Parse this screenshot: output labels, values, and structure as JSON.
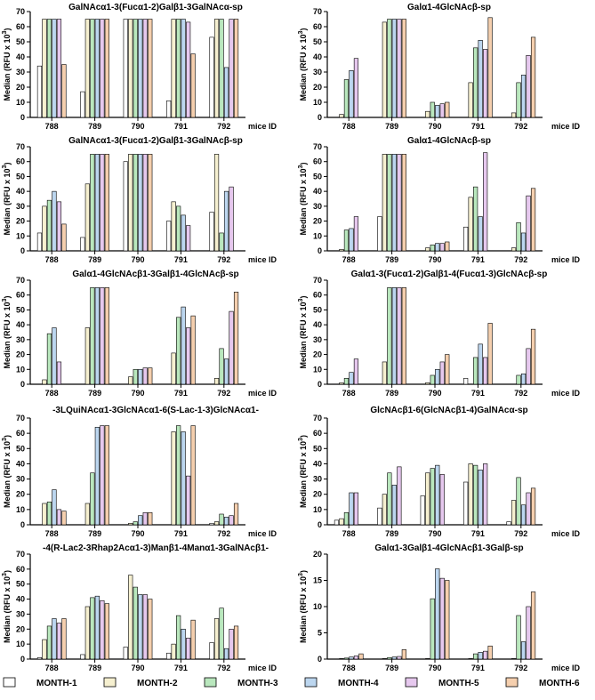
{
  "series_colors": [
    "#ffffff",
    "#f6f0d0",
    "#b9e7bd",
    "#bcd6ef",
    "#e6c8ee",
    "#f5cfae"
  ],
  "legend": [
    "MONTH-1",
    "MONTH-2",
    "MONTH-3",
    "MONTH-4",
    "MONTH-5",
    "MONTH-6"
  ],
  "chart_data": [
    {
      "type": "bar",
      "title": "GalNAcα1-3(Fucα1-2)Galβ1-3GalNAcα-sp",
      "ylabel": "Median (RFU x 10",
      "ylabel_sup": "3",
      "ylabel_close": ")",
      "xlabel": "mice ID",
      "categories": [
        "788",
        "789",
        "790",
        "791",
        "792"
      ],
      "ylim": [
        0,
        70
      ],
      "yticks": [
        "0",
        "10",
        "20",
        "30",
        "40",
        "50",
        "60",
        "70"
      ],
      "series": [
        {
          "name": "MONTH-1",
          "values": [
            34,
            17,
            65,
            11,
            53
          ]
        },
        {
          "name": "MONTH-2",
          "values": [
            65,
            65,
            65,
            65,
            65
          ]
        },
        {
          "name": "MONTH-3",
          "values": [
            65,
            65,
            65,
            65,
            65
          ]
        },
        {
          "name": "MONTH-4",
          "values": [
            65,
            65,
            65,
            65,
            33
          ]
        },
        {
          "name": "MONTH-5",
          "values": [
            65,
            65,
            65,
            63,
            65
          ]
        },
        {
          "name": "MONTH-6",
          "values": [
            35,
            65,
            65,
            42,
            65
          ]
        }
      ]
    },
    {
      "type": "bar",
      "title": "Galα1-4GlcNAcβ-sp",
      "ylabel": "Median (RFU x 10",
      "ylabel_sup": "3",
      "ylabel_close": ")",
      "xlabel": "mice ID",
      "categories": [
        "788",
        "789",
        "790",
        "791",
        "792"
      ],
      "ylim": [
        0,
        70
      ],
      "yticks": [
        "0",
        "10",
        "20",
        "30",
        "40",
        "50",
        "60",
        "70"
      ],
      "series": [
        {
          "name": "MONTH-1",
          "values": [
            0,
            0,
            0,
            0,
            0
          ]
        },
        {
          "name": "MONTH-2",
          "values": [
            2,
            63,
            4,
            23,
            3
          ]
        },
        {
          "name": "MONTH-3",
          "values": [
            25,
            65,
            10,
            46,
            23
          ]
        },
        {
          "name": "MONTH-4",
          "values": [
            31,
            65,
            8,
            51,
            28
          ]
        },
        {
          "name": "MONTH-5",
          "values": [
            39,
            65,
            9,
            45,
            41
          ]
        },
        {
          "name": "MONTH-6",
          "values": [
            0,
            65,
            10,
            66,
            53
          ]
        }
      ]
    },
    {
      "type": "bar",
      "title": "GalNAcα1-3(Fucα1-2)Galβ1-3GalNAcβ-sp",
      "ylabel": "Median (RFU x 10",
      "ylabel_sup": "3",
      "ylabel_close": ")",
      "xlabel": "mice ID",
      "categories": [
        "788",
        "789",
        "790",
        "791",
        "792"
      ],
      "ylim": [
        0,
        70
      ],
      "yticks": [
        "0",
        "10",
        "20",
        "30",
        "40",
        "50",
        "60",
        "70"
      ],
      "series": [
        {
          "name": "MONTH-1",
          "values": [
            12,
            9,
            60,
            20,
            26
          ]
        },
        {
          "name": "MONTH-2",
          "values": [
            30,
            45,
            65,
            33,
            65
          ]
        },
        {
          "name": "MONTH-3",
          "values": [
            34,
            65,
            65,
            30,
            12
          ]
        },
        {
          "name": "MONTH-4",
          "values": [
            40,
            65,
            65,
            24,
            40
          ]
        },
        {
          "name": "MONTH-5",
          "values": [
            33,
            65,
            65,
            17,
            43
          ]
        },
        {
          "name": "MONTH-6",
          "values": [
            18,
            65,
            65,
            0,
            0
          ]
        }
      ]
    },
    {
      "type": "bar",
      "title": "Galα1-4GlcNAcβ-sp",
      "ylabel": "Median (RFU x 10",
      "ylabel_sup": "3",
      "ylabel_close": ")",
      "xlabel": "mice ID",
      "categories": [
        "788",
        "789",
        "790",
        "791",
        "792"
      ],
      "ylim": [
        0,
        70
      ],
      "yticks": [
        "0",
        "10",
        "20",
        "30",
        "40",
        "50",
        "60",
        "70"
      ],
      "series": [
        {
          "name": "MONTH-1",
          "values": [
            0,
            23,
            0,
            16,
            0
          ]
        },
        {
          "name": "MONTH-2",
          "values": [
            1,
            65,
            2,
            36,
            2
          ]
        },
        {
          "name": "MONTH-3",
          "values": [
            14,
            65,
            4,
            43,
            19
          ]
        },
        {
          "name": "MONTH-4",
          "values": [
            15,
            65,
            5,
            23,
            12
          ]
        },
        {
          "name": "MONTH-5",
          "values": [
            23,
            65,
            5,
            66,
            37
          ]
        },
        {
          "name": "MONTH-6",
          "values": [
            0,
            65,
            6,
            0,
            42
          ]
        }
      ]
    },
    {
      "type": "bar",
      "title": "Galα1-4GlcNAcβ1-3Galβ1-4GlcNAcβ-sp",
      "ylabel": "Median (RFU x 10",
      "ylabel_sup": "3",
      "ylabel_close": ")",
      "xlabel": "mice ID",
      "categories": [
        "788",
        "789",
        "790",
        "791",
        "792"
      ],
      "ylim": [
        0,
        70
      ],
      "yticks": [
        "0",
        "10",
        "20",
        "30",
        "40",
        "50",
        "60",
        "70"
      ],
      "series": [
        {
          "name": "MONTH-1",
          "values": [
            0,
            0,
            0,
            0,
            0
          ]
        },
        {
          "name": "MONTH-2",
          "values": [
            3,
            38,
            5,
            21,
            4
          ]
        },
        {
          "name": "MONTH-3",
          "values": [
            34,
            65,
            10,
            45,
            24
          ]
        },
        {
          "name": "MONTH-4",
          "values": [
            38,
            65,
            10,
            52,
            17
          ]
        },
        {
          "name": "MONTH-5",
          "values": [
            15,
            65,
            11,
            38,
            49
          ]
        },
        {
          "name": "MONTH-6",
          "values": [
            0,
            65,
            11,
            46,
            62
          ]
        }
      ]
    },
    {
      "type": "bar",
      "title": "Galα1-3(Fucα1-2)Galβ1-4(Fucα1-3)GlcNAcβ-sp",
      "ylabel": "Median (RFU x 10",
      "ylabel_sup": "3",
      "ylabel_close": ")",
      "xlabel": "mice ID",
      "categories": [
        "788",
        "789",
        "790",
        "791",
        "792"
      ],
      "ylim": [
        0,
        70
      ],
      "yticks": [
        "0",
        "10",
        "20",
        "30",
        "40",
        "50",
        "60",
        "70"
      ],
      "series": [
        {
          "name": "MONTH-1",
          "values": [
            0,
            0,
            0,
            4,
            0
          ]
        },
        {
          "name": "MONTH-2",
          "values": [
            1,
            15,
            1,
            0,
            0
          ]
        },
        {
          "name": "MONTH-3",
          "values": [
            4,
            65,
            6,
            18,
            6
          ]
        },
        {
          "name": "MONTH-4",
          "values": [
            8,
            65,
            10,
            27,
            7
          ]
        },
        {
          "name": "MONTH-5",
          "values": [
            17,
            65,
            15,
            18,
            24
          ]
        },
        {
          "name": "MONTH-6",
          "values": [
            0,
            65,
            20,
            41,
            37
          ]
        }
      ]
    },
    {
      "type": "bar",
      "title": "-3LQuiNAcα1-3GlcNAcα1-6(S-Lac-1-3)GlcNAcα1-",
      "ylabel": "Median (RFU x 10",
      "ylabel_sup": "3",
      "ylabel_close": ")",
      "xlabel": "mice ID",
      "categories": [
        "788",
        "789",
        "790",
        "791",
        "792"
      ],
      "ylim": [
        0,
        70
      ],
      "yticks": [
        "0",
        "10",
        "20",
        "30",
        "40",
        "50",
        "60",
        "70"
      ],
      "series": [
        {
          "name": "MONTH-1",
          "values": [
            0,
            0,
            0,
            0,
            1
          ]
        },
        {
          "name": "MONTH-2",
          "values": [
            14,
            14,
            1,
            61,
            2
          ]
        },
        {
          "name": "MONTH-3",
          "values": [
            15,
            34,
            2,
            65,
            7
          ]
        },
        {
          "name": "MONTH-4",
          "values": [
            23,
            64,
            6,
            61,
            5
          ]
        },
        {
          "name": "MONTH-5",
          "values": [
            10,
            65,
            8,
            32,
            6
          ]
        },
        {
          "name": "MONTH-6",
          "values": [
            9,
            65,
            8,
            65,
            14
          ]
        }
      ]
    },
    {
      "type": "bar",
      "title": "GlcNAcβ1-6(GlcNAcβ1-4)GalNAcα-sp",
      "ylabel": "Median (RFU x 10",
      "ylabel_sup": "3",
      "ylabel_close": ")",
      "xlabel": "mice ID",
      "categories": [
        "788",
        "789",
        "790",
        "791",
        "792"
      ],
      "ylim": [
        0,
        70
      ],
      "yticks": [
        "0",
        "10",
        "20",
        "30",
        "40",
        "50",
        "60",
        "70"
      ],
      "series": [
        {
          "name": "MONTH-1",
          "values": [
            3,
            11,
            19,
            28,
            2
          ]
        },
        {
          "name": "MONTH-2",
          "values": [
            4,
            20,
            34,
            40,
            16
          ]
        },
        {
          "name": "MONTH-3",
          "values": [
            8,
            34,
            37,
            39,
            31
          ]
        },
        {
          "name": "MONTH-4",
          "values": [
            21,
            26,
            39,
            36,
            13
          ]
        },
        {
          "name": "MONTH-5",
          "values": [
            21,
            38,
            33,
            40,
            21
          ]
        },
        {
          "name": "MONTH-6",
          "values": [
            0,
            0,
            0,
            0,
            24
          ]
        }
      ]
    },
    {
      "type": "bar",
      "title": "-4(R-Lac2-3Rhap2Acα1-3)Manβ1-4Manα1-3GalNAcβ1-",
      "ylabel": "Median (RFU x 10",
      "ylabel_sup": "3",
      "ylabel_close": ")",
      "xlabel": "mice ID",
      "categories": [
        "788",
        "789",
        "790",
        "791",
        "792"
      ],
      "ylim": [
        0,
        70
      ],
      "yticks": [
        "0",
        "10",
        "20",
        "30",
        "40",
        "50",
        "60",
        "70"
      ],
      "series": [
        {
          "name": "MONTH-1",
          "values": [
            1,
            3,
            8,
            4,
            11
          ]
        },
        {
          "name": "MONTH-2",
          "values": [
            13,
            35,
            56,
            10,
            27
          ]
        },
        {
          "name": "MONTH-3",
          "values": [
            22,
            41,
            48,
            29,
            34
          ]
        },
        {
          "name": "MONTH-4",
          "values": [
            27,
            42,
            43,
            20,
            7
          ]
        },
        {
          "name": "MONTH-5",
          "values": [
            24,
            39,
            43,
            14,
            20
          ]
        },
        {
          "name": "MONTH-6",
          "values": [
            27,
            37,
            40,
            26,
            22
          ]
        }
      ]
    },
    {
      "type": "bar",
      "title": "Galα1-3Galβ1-4GlcNAcβ1-3Galβ-sp",
      "ylabel": "Median (RFU x 10",
      "ylabel_sup": "3",
      "ylabel_close": ")",
      "xlabel": "mice ID",
      "categories": [
        "788",
        "789",
        "790",
        "791",
        "792"
      ],
      "ylim": [
        0,
        20
      ],
      "yticks": [
        "0",
        "5",
        "10",
        "15",
        "20"
      ],
      "series": [
        {
          "name": "MONTH-1",
          "values": [
            0,
            0,
            0,
            0,
            0
          ]
        },
        {
          "name": "MONTH-2",
          "values": [
            0.1,
            0.1,
            0.1,
            0.1,
            0.1
          ]
        },
        {
          "name": "MONTH-3",
          "values": [
            0.2,
            0.3,
            11.5,
            1,
            8.3
          ]
        },
        {
          "name": "MONTH-4",
          "values": [
            0.4,
            0.4,
            17.2,
            1.3,
            3.3
          ]
        },
        {
          "name": "MONTH-5",
          "values": [
            0.6,
            0.5,
            15.4,
            1.5,
            10
          ]
        },
        {
          "name": "MONTH-6",
          "values": [
            1,
            1.8,
            15,
            2.5,
            12.8
          ]
        }
      ]
    }
  ]
}
